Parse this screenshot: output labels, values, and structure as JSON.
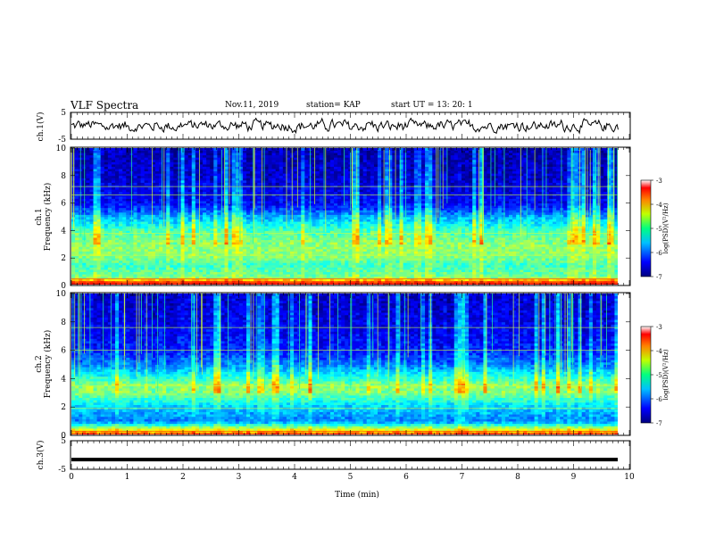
{
  "header": {
    "title": "VLF Spectra",
    "date": "Nov.11, 2019",
    "station": "station= KAP",
    "start": "start  UT =   13: 20: 1"
  },
  "chart_data": [
    {
      "type": "line",
      "panel": "ch1-waveform",
      "ylabel": "ch.1(V)",
      "ylim": [
        -5,
        5
      ],
      "y_ticks": [
        "5",
        "-5"
      ],
      "xlim": [
        0,
        10
      ],
      "note_values": "noisy waveform oscillating roughly between -2.5 and 2.5 V"
    },
    {
      "type": "heatmap",
      "panel": "ch1-spectrogram",
      "ylabel_line1": "ch.1",
      "ylabel_line2": "Frequency (kHz)",
      "ylim": [
        0,
        10
      ],
      "y_ticks": [
        "0",
        "2",
        "4",
        "6",
        "8",
        "10"
      ],
      "xlim": [
        0,
        10
      ],
      "colorbar": {
        "label": "log(PSD)(V²/Hz)",
        "range": [
          -7,
          -3
        ],
        "ticks": [
          "-3",
          "-4",
          "-5",
          "-6",
          "-7"
        ]
      },
      "profile_log_psd": [
        {
          "f": 0,
          "v": -3.2
        },
        {
          "f": 0.3,
          "v": -3.8
        },
        {
          "f": 0.6,
          "v": -5.0
        },
        {
          "f": 1.5,
          "v": -5.3
        },
        {
          "f": 2.0,
          "v": -5.0
        },
        {
          "f": 3.0,
          "v": -4.9
        },
        {
          "f": 4.0,
          "v": -5.2
        },
        {
          "f": 5.0,
          "v": -5.8
        },
        {
          "f": 5.5,
          "v": -6.2
        },
        {
          "f": 6.0,
          "v": -6.5
        },
        {
          "f": 8.0,
          "v": -6.7
        },
        {
          "f": 10.0,
          "v": -6.8
        }
      ],
      "bright_lines_khz": [
        0.2,
        0.5,
        2.2,
        3.8,
        6.6,
        7.2
      ]
    },
    {
      "type": "heatmap",
      "panel": "ch2-spectrogram",
      "ylabel_line1": "ch.2",
      "ylabel_line2": "Frequency (kHz)",
      "ylim": [
        0,
        10
      ],
      "y_ticks": [
        "0",
        "2",
        "4",
        "6",
        "8",
        "10"
      ],
      "xlim": [
        0,
        10
      ],
      "colorbar": {
        "label": "log(PSD)(V²/Hz)",
        "range": [
          -7,
          -3
        ],
        "ticks": [
          "-3",
          "-4",
          "-5",
          "-6",
          "-7"
        ]
      },
      "profile_log_psd": [
        {
          "f": 0,
          "v": -3.5
        },
        {
          "f": 0.4,
          "v": -4.5
        },
        {
          "f": 1.0,
          "v": -6.0
        },
        {
          "f": 2.0,
          "v": -5.7
        },
        {
          "f": 3.0,
          "v": -5.0
        },
        {
          "f": 3.5,
          "v": -4.9
        },
        {
          "f": 4.0,
          "v": -5.3
        },
        {
          "f": 5.0,
          "v": -6.0
        },
        {
          "f": 6.0,
          "v": -6.4
        },
        {
          "f": 8.0,
          "v": -6.6
        },
        {
          "f": 10.0,
          "v": -6.7
        }
      ],
      "bright_lines_khz": [
        0.3,
        1.9,
        3.5,
        6.0,
        7.6
      ]
    },
    {
      "type": "line",
      "panel": "ch3-waveform",
      "ylabel": "ch.3(V)",
      "ylim": [
        -5,
        5
      ],
      "y_ticks": [
        "5",
        "-5"
      ],
      "xlim": [
        0,
        10
      ],
      "xlabel": "Time (min)",
      "x_ticks": [
        "0",
        "1",
        "2",
        "3",
        "4",
        "5",
        "6",
        "7",
        "8",
        "9",
        "10"
      ],
      "constant_value": -1.6
    }
  ],
  "colors": {
    "frame": "#000000",
    "background": "#ffffff"
  }
}
